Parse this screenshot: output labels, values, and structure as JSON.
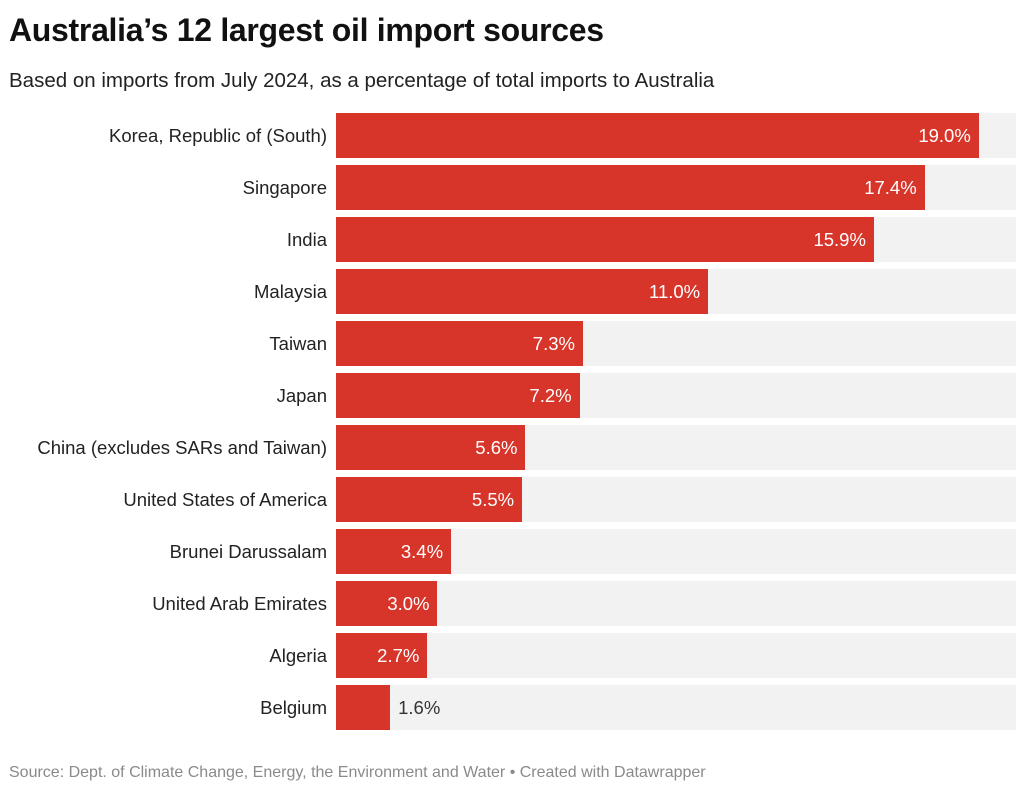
{
  "title": "Australia’s 12 largest oil import sources",
  "subtitle": "Based on imports from July 2024, as a percentage of total imports to Australia",
  "source": "Source: Dept. of Climate Change, Energy, the Environment and Water • Created with Datawrapper",
  "chart_data": {
    "type": "bar",
    "orientation": "horizontal",
    "categories": [
      "Korea, Republic of (South)",
      "Singapore",
      "India",
      "Malaysia",
      "Taiwan",
      "Japan",
      "China (excludes SARs and Taiwan)",
      "United States of America",
      "Brunei Darussalam",
      "United Arab Emirates",
      "Algeria",
      "Belgium"
    ],
    "values": [
      19.0,
      17.4,
      15.9,
      11.0,
      7.3,
      7.2,
      5.6,
      5.5,
      3.4,
      3.0,
      2.7,
      1.6
    ],
    "value_labels": [
      "19.0%",
      "17.4%",
      "15.9%",
      "11.0%",
      "7.3%",
      "7.2%",
      "5.6%",
      "5.5%",
      "3.4%",
      "3.0%",
      "2.7%",
      "1.6%"
    ],
    "xlim": [
      0,
      20.1
    ],
    "grid": false,
    "bar_color": "#d8352a",
    "track_color": "#f2f2f2"
  }
}
